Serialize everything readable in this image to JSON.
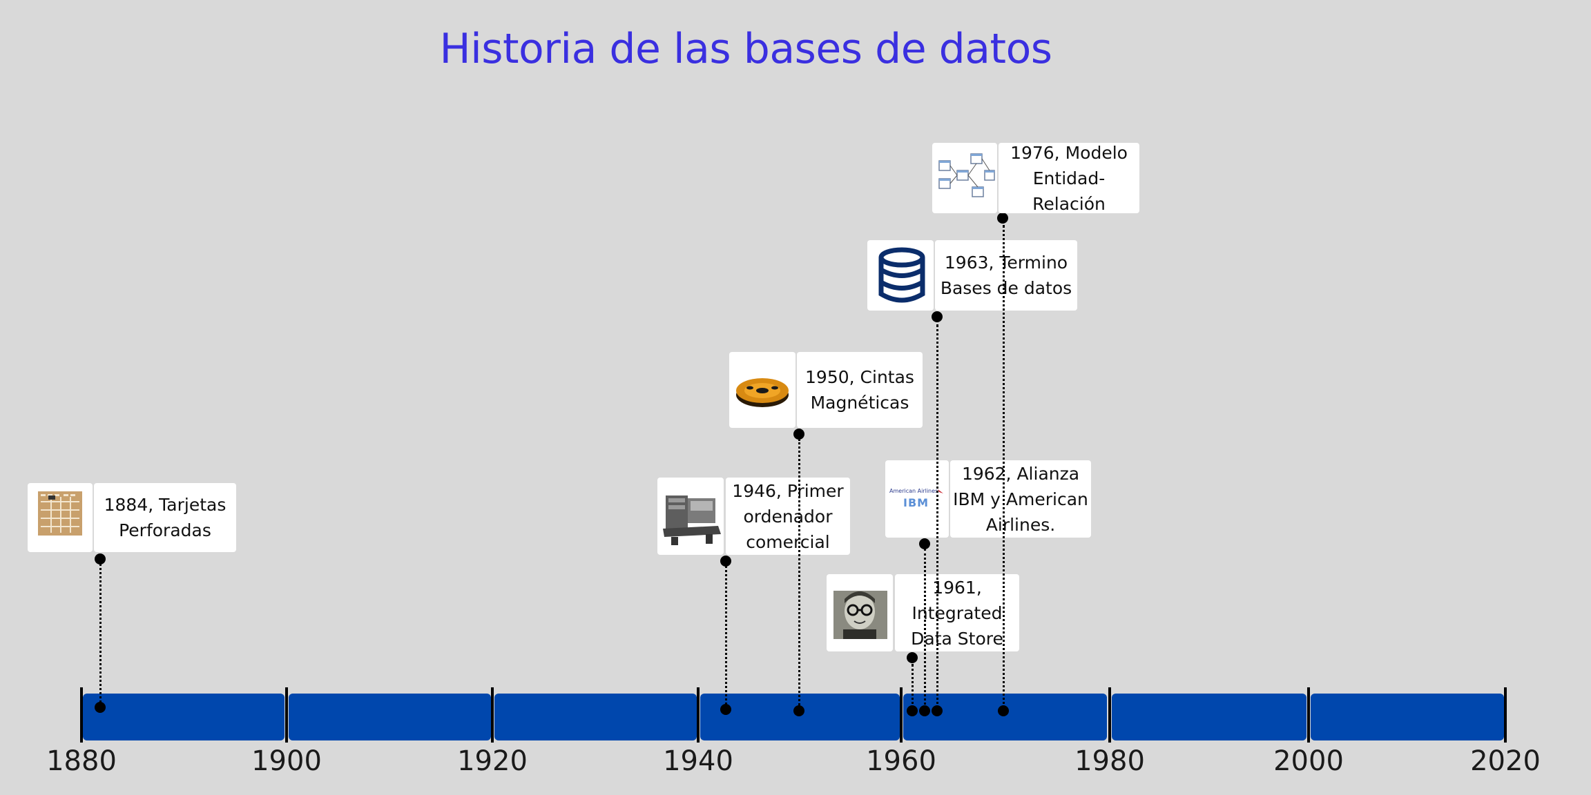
{
  "title": "Historia de las bases de datos",
  "axis": {
    "years": [
      "1880",
      "1900",
      "1920",
      "1940",
      "1960",
      "1980",
      "2000",
      "2020"
    ]
  },
  "events": [
    {
      "id": "tarjetas",
      "year": 1884,
      "lines": [
        "1884, Tarjetas",
        "Perforadas"
      ],
      "icon": "punched-card-icon"
    },
    {
      "id": "primer-ordenador",
      "year": 1946,
      "lines": [
        "1946, Primer",
        "ordenador",
        "comercial"
      ],
      "icon": "mainframe-computer-icon"
    },
    {
      "id": "cintas",
      "year": 1950,
      "lines": [
        "1950, Cintas",
        "Magnéticas"
      ],
      "icon": "magnetic-tape-reel-icon"
    },
    {
      "id": "ids",
      "year": 1961,
      "lines": [
        "1961,",
        "Integrated",
        "Data Store"
      ],
      "icon": "portrait-photo-icon"
    },
    {
      "id": "alianza",
      "year": 1962,
      "lines": [
        "1962, Alianza",
        "IBM y American",
        "Airlines."
      ],
      "icon": "american-airlines-ibm-logo-icon",
      "logo_text": [
        "American Airlines",
        "IBM"
      ]
    },
    {
      "id": "termino",
      "year": 1963,
      "lines": [
        "1963, Termino",
        "Bases de datos"
      ],
      "icon": "database-cylinder-icon"
    },
    {
      "id": "modelo-er",
      "year": 1976,
      "lines": [
        "1976, Modelo",
        "Entidad-Relación"
      ],
      "icon": "er-diagram-icon"
    }
  ],
  "colors": {
    "title": "#3a2fe0",
    "timeline_bar": "#0047ad",
    "background": "#d9d9d9",
    "database_icon": "#0b2d6b"
  }
}
